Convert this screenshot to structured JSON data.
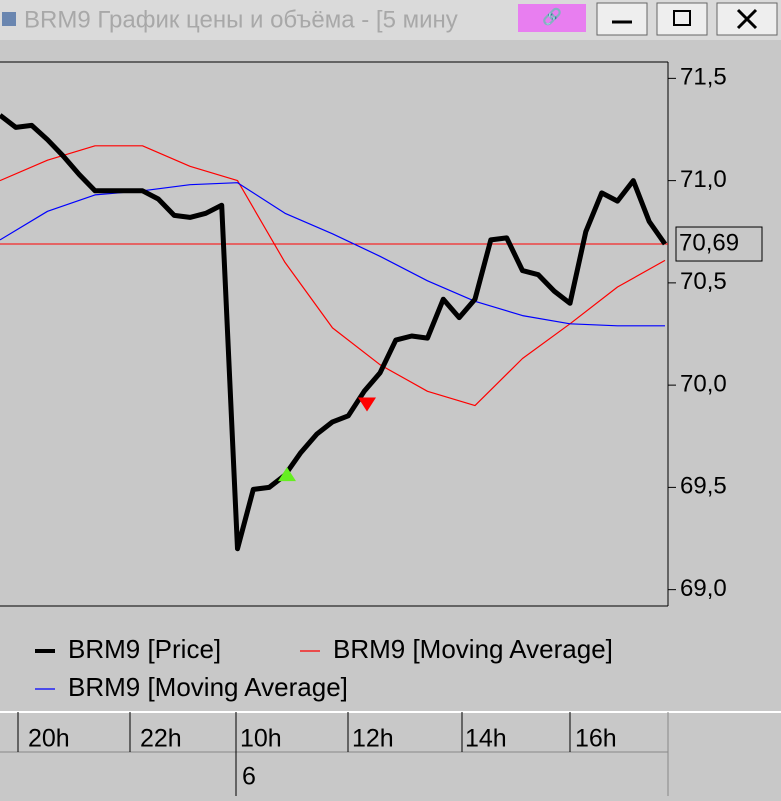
{
  "window": {
    "title": "BRM9 График цены и объёма - [5 мину"
  },
  "chart_data": {
    "type": "line",
    "ylim": [
      68.92,
      71.58
    ],
    "yticks": [
      {
        "value": 69.0,
        "label": "69,0"
      },
      {
        "value": 69.5,
        "label": "69,5"
      },
      {
        "value": 70.0,
        "label": "70,0"
      },
      {
        "value": 70.5,
        "label": "70,5"
      },
      {
        "value": 71.0,
        "label": "71,0"
      },
      {
        "value": 71.5,
        "label": "71,5"
      }
    ],
    "last_price": {
      "value": 70.69,
      "label": "70,69"
    },
    "buy_signal": 69.56,
    "sell_signal": 69.91,
    "series": [
      {
        "name": "BRM9 [Price]",
        "color": "#000000",
        "values": [
          71.32,
          71.26,
          71.27,
          71.2,
          71.12,
          71.03,
          70.95,
          70.95,
          70.95,
          70.95,
          70.91,
          70.83,
          70.82,
          70.84,
          70.88,
          69.2,
          69.49,
          69.5,
          69.56,
          69.67,
          69.76,
          69.82,
          69.85,
          69.97,
          70.06,
          70.22,
          70.24,
          70.23,
          70.42,
          70.33,
          70.42,
          70.71,
          70.72,
          70.56,
          70.54,
          70.46,
          70.4,
          70.75,
          70.94,
          70.9,
          71.0,
          70.8,
          70.69
        ]
      },
      {
        "name": "BRM9 [Moving Average]",
        "color": "#ff0000",
        "values": [
          71.0,
          71.1,
          71.17,
          71.17,
          71.07,
          71.0,
          70.6,
          70.28,
          70.1,
          69.97,
          69.9,
          70.13,
          70.3,
          70.48,
          70.61
        ]
      },
      {
        "name": "BRM9 [Moving Average]",
        "color": "#0000ff",
        "values": [
          70.71,
          70.85,
          70.93,
          70.95,
          70.98,
          70.99,
          70.84,
          70.74,
          70.63,
          70.51,
          70.41,
          70.34,
          70.3,
          70.29,
          70.29
        ]
      }
    ],
    "time_labels": [
      "20h",
      "22h",
      "10h",
      "12h",
      "14h",
      "16h"
    ],
    "date_label": "6"
  }
}
